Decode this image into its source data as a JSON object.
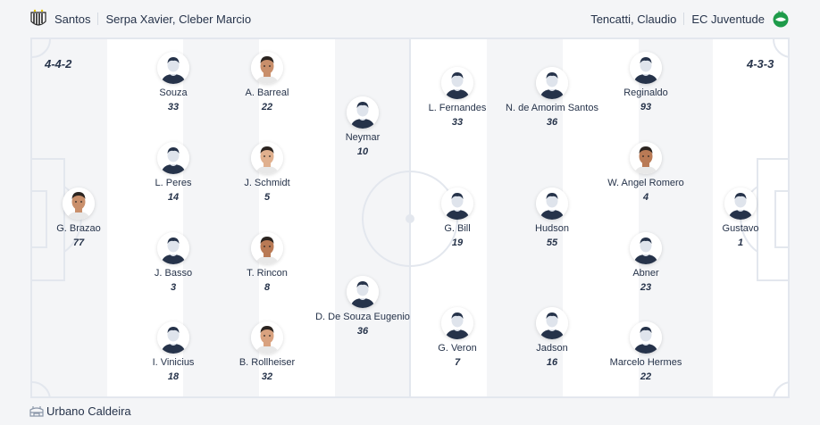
{
  "home": {
    "team": "Santos",
    "coach": "Serpa Xavier, Cleber Marcio",
    "formation": "4-4-2",
    "logo_icon": "santos-crest-icon",
    "players": [
      {
        "name": "G. Brazao",
        "number": "77",
        "photo": true
      },
      {
        "name": "Souza",
        "number": "33",
        "photo": false
      },
      {
        "name": "L. Peres",
        "number": "14",
        "photo": false
      },
      {
        "name": "J. Basso",
        "number": "3",
        "photo": false
      },
      {
        "name": "I. Vinicius",
        "number": "18",
        "photo": false
      },
      {
        "name": "A. Barreal",
        "number": "22",
        "photo": true
      },
      {
        "name": "J. Schmidt",
        "number": "5",
        "photo": true
      },
      {
        "name": "T. Rincon",
        "number": "8",
        "photo": true
      },
      {
        "name": "B. Rollheiser",
        "number": "32",
        "photo": true
      },
      {
        "name": "Neymar",
        "number": "10",
        "photo": false
      },
      {
        "name": "D. De Souza Eugenio",
        "number": "36",
        "photo": false
      }
    ]
  },
  "away": {
    "team": "EC Juventude",
    "coach": "Tencatti, Claudio",
    "formation": "4-3-3",
    "logo_icon": "juventude-crest-icon",
    "players": [
      {
        "name": "L. Fernandes",
        "number": "33",
        "photo": false
      },
      {
        "name": "G. Bill",
        "number": "19",
        "photo": false
      },
      {
        "name": "G. Veron",
        "number": "7",
        "photo": false
      },
      {
        "name": "N. de Amorim Santos",
        "number": "36",
        "photo": false
      },
      {
        "name": "Hudson",
        "number": "55",
        "photo": false
      },
      {
        "name": "Jadson",
        "number": "16",
        "photo": false
      },
      {
        "name": "Reginaldo",
        "number": "93",
        "photo": false
      },
      {
        "name": "W. Angel Romero",
        "number": "4",
        "photo": true
      },
      {
        "name": "Abner",
        "number": "23",
        "photo": false
      },
      {
        "name": "Marcelo Hermes",
        "number": "22",
        "photo": false
      },
      {
        "name": "Gustavo",
        "number": "1",
        "photo": false
      }
    ]
  },
  "venue": {
    "name": "Urbano Caldeira",
    "icon": "stadium-icon"
  },
  "colors": {
    "text": "#26334a",
    "pitch_line": "#e3e7ee",
    "away_green": "#1e9b4a"
  }
}
